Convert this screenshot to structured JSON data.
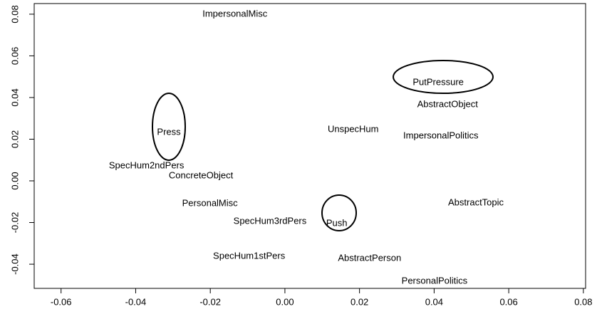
{
  "chart_data": {
    "type": "scatter",
    "labels": [
      "ImpersonalMisc",
      "PutPressure",
      "AbstractObject",
      "UnspecHum",
      "ImpersonalPolitics",
      "Press",
      "SpecHum2ndPers",
      "ConcreteObject",
      "PersonalMisc",
      "AbstractTopic",
      "SpecHum3rdPers",
      "Push",
      "SpecHum1stPers",
      "AbstractPerson",
      "PersonalPolitics"
    ],
    "x": [
      -0.0134,
      0.0411,
      0.0436,
      0.0183,
      0.0418,
      -0.0311,
      -0.0371,
      -0.0225,
      -0.0201,
      0.0512,
      -0.004,
      0.0139,
      -0.0096,
      0.0227,
      0.0401
    ],
    "y": [
      0.08,
      0.0472,
      0.0366,
      0.0246,
      0.0215,
      0.0232,
      0.0072,
      0.0024,
      -0.0109,
      -0.0106,
      -0.0195,
      -0.0205,
      -0.0362,
      -0.0373,
      -0.0482
    ],
    "xlim": [
      -0.0672,
      0.0806
    ],
    "ylim": [
      -0.0516,
      0.0851
    ],
    "xticks": [
      -0.06,
      -0.04,
      -0.02,
      {
        "value": 0,
        "label": "0.00"
      },
      0.02,
      0.04,
      0.06,
      0.08
    ],
    "yticks": [
      -0.04,
      -0.02,
      {
        "value": 0,
        "label": "0.00"
      },
      0.02,
      0.04,
      0.06,
      0.08
    ]
  }
}
